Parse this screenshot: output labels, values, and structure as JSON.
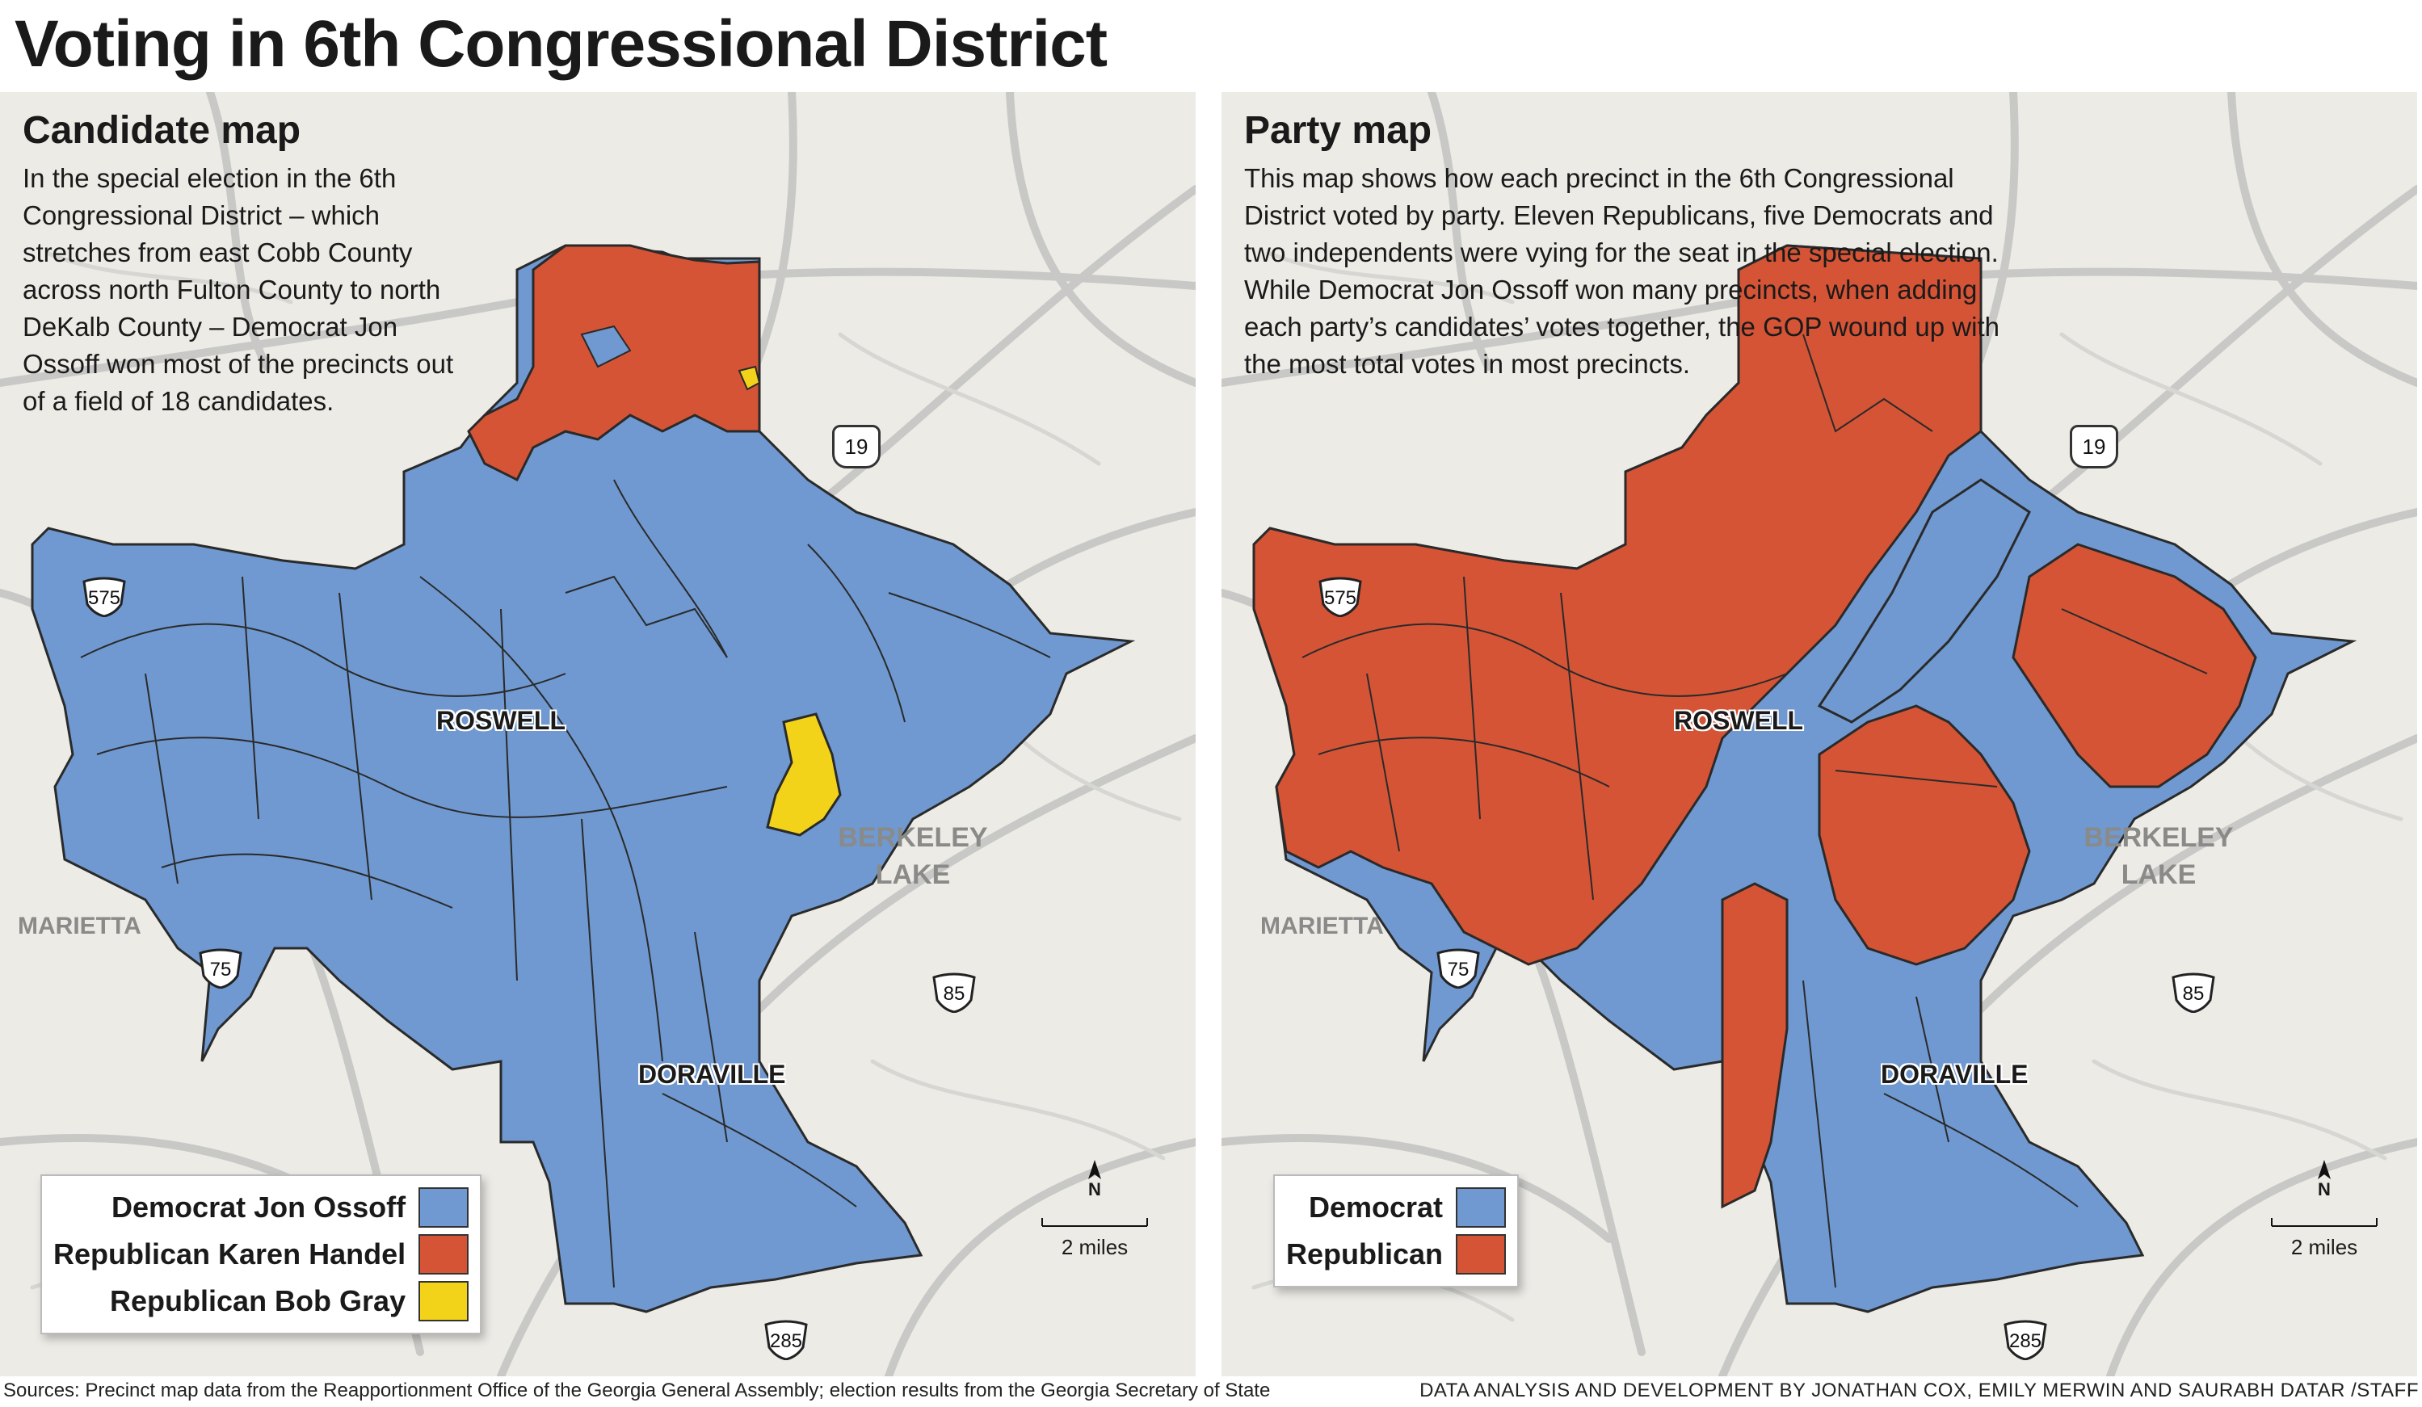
{
  "headline": "Voting in 6th Congressional District",
  "colors": {
    "democrat": "#6f99d0",
    "republican": "#d55436",
    "bob_gray": "#f2d31a",
    "map_bg": "#ecebe6",
    "roads": "#c4c4c4",
    "precinct_lines": "#2a2a2a"
  },
  "left_panel": {
    "title": "Candidate map",
    "description": "In the special election in the 6th Congressional District – which stretches from east Cobb County across north Fulton County to north DeKalb County – Democrat Jon Ossoff won most of the precincts out of a field of 18 candidates.",
    "legend": [
      {
        "label": "Democrat Jon Ossoff",
        "color": "#6f99d0"
      },
      {
        "label": "Republican Karen Handel",
        "color": "#d55436"
      },
      {
        "label": "Republican Bob Gray",
        "color": "#f2d31a"
      }
    ]
  },
  "right_panel": {
    "title": "Party map",
    "description": "This map shows how each precinct in the 6th Congressional District voted by party. Eleven Republicans, five Democrats and two independents were vying for the seat in the special election. While Democrat Jon Ossoff won many precincts, when adding each party’s candidates’ votes together, the GOP wound up with the most total votes in most precincts.",
    "legend": [
      {
        "label": "Democrat",
        "color": "#6f99d0"
      },
      {
        "label": "Republican",
        "color": "#d55436"
      }
    ]
  },
  "places": {
    "roswell": "ROSWELL",
    "doraville": "DORAVILLE",
    "berkeley_lake": "BERKELEY LAKE",
    "marietta": "MARIETTA"
  },
  "highways": {
    "i575": "575",
    "i75": "75",
    "i85": "85",
    "i285": "285",
    "us19": "19"
  },
  "scale": {
    "north": "N",
    "distance": "2 miles"
  },
  "footer": {
    "sources": "Sources: Precinct map data from the Reapportionment Office of the Georgia General Assembly; election results from the Georgia Secretary of State",
    "credit": "DATA ANALYSIS AND DEVELOPMENT BY JONATHAN COX, EMILY MERWIN AND SAURABH DATAR /STAFF"
  }
}
